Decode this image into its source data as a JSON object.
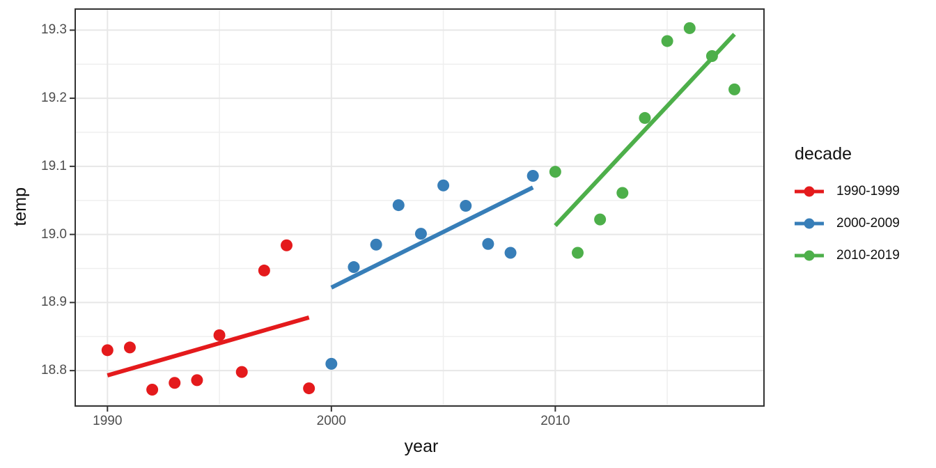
{
  "chart_data": {
    "type": "scatter",
    "xlabel": "year",
    "ylabel": "temp",
    "legend_title": "decade",
    "legend_position": "right",
    "grid": true,
    "x_domain": [
      1988.56,
      2019.32
    ],
    "y_domain": [
      18.748,
      19.331
    ],
    "x_ticks": [
      {
        "value": 1990,
        "label": "1990"
      },
      {
        "value": 2000,
        "label": "2000"
      },
      {
        "value": 2010,
        "label": "2010"
      }
    ],
    "x_minor_ticks": [
      1995,
      2005,
      2015
    ],
    "y_ticks": [
      {
        "value": 18.8,
        "label": "18.8"
      },
      {
        "value": 18.9,
        "label": "18.9"
      },
      {
        "value": 19.0,
        "label": "19.0"
      },
      {
        "value": 19.1,
        "label": "19.1"
      },
      {
        "value": 19.2,
        "label": "19.2"
      },
      {
        "value": 19.3,
        "label": "19.3"
      }
    ],
    "y_minor_ticks": [
      18.75,
      18.85,
      18.95,
      19.05,
      19.15,
      19.25
    ],
    "series": [
      {
        "name": "1990-1999",
        "color": "#E41A1C",
        "points": [
          [
            1990,
            18.83
          ],
          [
            1991,
            18.834
          ],
          [
            1992,
            18.772
          ],
          [
            1993,
            18.782
          ],
          [
            1994,
            18.786
          ],
          [
            1995,
            18.852
          ],
          [
            1996,
            18.798
          ],
          [
            1997,
            18.947
          ],
          [
            1998,
            18.984
          ],
          [
            1999,
            18.774
          ]
        ],
        "trend": [
          [
            1990,
            18.793
          ],
          [
            1999,
            18.878
          ]
        ]
      },
      {
        "name": "2000-2009",
        "color": "#377EB8",
        "points": [
          [
            2000,
            18.81
          ],
          [
            2001,
            18.952
          ],
          [
            2002,
            18.985
          ],
          [
            2003,
            19.043
          ],
          [
            2004,
            19.001
          ],
          [
            2005,
            19.072
          ],
          [
            2006,
            19.042
          ],
          [
            2007,
            18.986
          ],
          [
            2008,
            18.973
          ],
          [
            2009,
            19.086
          ]
        ],
        "trend": [
          [
            2000,
            18.922
          ],
          [
            2009,
            19.069
          ]
        ]
      },
      {
        "name": "2010-2019",
        "color": "#4DAF4A",
        "points": [
          [
            2010,
            19.092
          ],
          [
            2011,
            18.973
          ],
          [
            2012,
            19.022
          ],
          [
            2013,
            19.061
          ],
          [
            2014,
            19.171
          ],
          [
            2015,
            19.284
          ],
          [
            2016,
            19.303
          ],
          [
            2017,
            19.262
          ],
          [
            2018,
            19.213
          ]
        ],
        "trend": [
          [
            2010,
            19.013
          ],
          [
            2018,
            19.294
          ]
        ]
      }
    ],
    "style": {
      "panel_background": "#ffffff",
      "panel_border": "#333333",
      "grid_major": "#e7e7e7",
      "grid_minor": "#efefef",
      "tick_mark": "#333333",
      "tick_label_color": "#4d4d4d",
      "point_radius": 8.5,
      "trend_width": 6
    }
  }
}
